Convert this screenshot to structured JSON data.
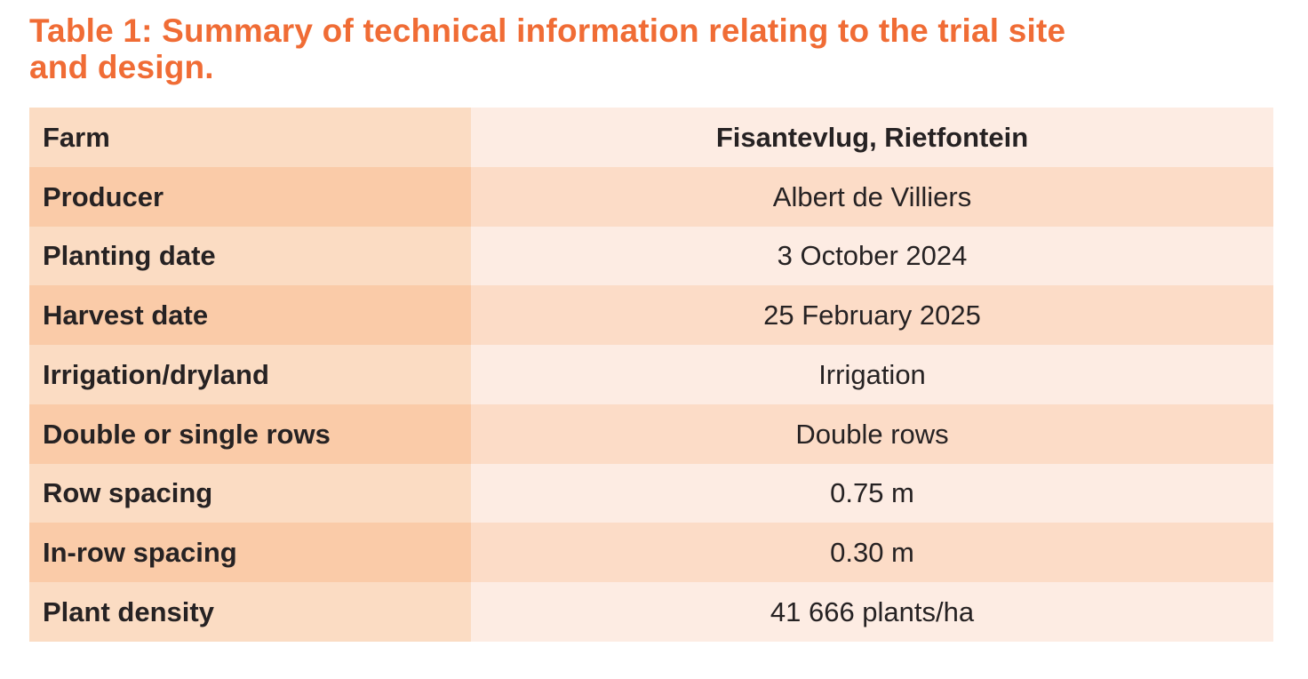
{
  "title": {
    "line1": "Table 1: Summary of technical information relating to the trial site",
    "line2": "and design."
  },
  "table": {
    "rows": [
      {
        "label": "Farm",
        "value": "Fisantevlug, Rietfontein"
      },
      {
        "label": "Producer",
        "value": "Albert de Villiers"
      },
      {
        "label": "Planting date",
        "value": "3 October 2024"
      },
      {
        "label": "Harvest date",
        "value": "25 February 2025"
      },
      {
        "label": "Irrigation/dryland",
        "value": "Irrigation"
      },
      {
        "label": "Double or single rows",
        "value": "Double rows"
      },
      {
        "label": "Row spacing",
        "value": "0.75 m"
      },
      {
        "label": "In-row spacing",
        "value": "0.30 m"
      },
      {
        "label": "Plant density",
        "value": "41 666 plants/ha"
      }
    ]
  },
  "colors": {
    "title_orange": "#F06C35",
    "text_dark": "#262223",
    "label_cell_light": "#FBDCC3",
    "label_cell_dark": "#FACBA8",
    "value_cell_light": "#FDECE3",
    "value_cell_dark": "#FCDCC7"
  }
}
